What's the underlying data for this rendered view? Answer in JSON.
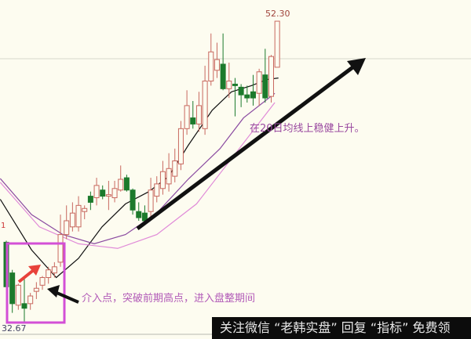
{
  "chart_data": {
    "type": "candlestick",
    "title": "",
    "xlabel": "",
    "ylabel": "",
    "ylim": [
      32.67,
      52.3
    ],
    "grid": false,
    "high_label": "52.30",
    "low_label": "32.67",
    "left_marker": "1",
    "candle_fields": [
      "open",
      "high",
      "low",
      "close"
    ],
    "candles": [
      [
        37.9,
        38.0,
        34.6,
        35.0
      ],
      [
        35.9,
        36.1,
        33.3,
        33.9
      ],
      [
        33.8,
        35.2,
        33.5,
        35.1
      ],
      [
        33.9,
        35.6,
        32.67,
        33.6
      ],
      [
        33.9,
        34.6,
        33.5,
        34.4
      ],
      [
        34.7,
        35.3,
        34.2,
        34.9
      ],
      [
        35.1,
        35.7,
        34.8,
        35.6
      ],
      [
        35.6,
        36.3,
        35.2,
        36.1
      ],
      [
        35.9,
        36.6,
        35.6,
        36.3
      ],
      [
        36.6,
        39.7,
        36.3,
        38.4
      ],
      [
        38.4,
        40.3,
        38.1,
        39.3
      ],
      [
        38.9,
        40.5,
        38.6,
        39.8
      ],
      [
        38.9,
        40.9,
        38.6,
        40.3
      ],
      [
        39.9,
        40.3,
        39.4,
        40.1
      ],
      [
        40.9,
        41.2,
        40.0,
        40.5
      ],
      [
        40.8,
        42.1,
        40.3,
        41.6
      ],
      [
        41.3,
        41.6,
        40.7,
        40.9
      ],
      [
        40.9,
        41.9,
        40.0,
        41.0
      ],
      [
        40.8,
        41.9,
        40.5,
        41.4
      ],
      [
        41.3,
        42.9,
        41.2,
        42.0
      ],
      [
        42.1,
        42.3,
        41.2,
        41.3
      ],
      [
        41.3,
        41.4,
        39.7,
        40.0
      ],
      [
        39.9,
        40.5,
        39.3,
        39.5
      ],
      [
        39.8,
        40.3,
        39.2,
        39.3
      ],
      [
        39.9,
        42.1,
        39.4,
        41.3
      ],
      [
        40.9,
        42.2,
        40.5,
        41.7
      ],
      [
        41.4,
        43.2,
        41.0,
        42.5
      ],
      [
        41.7,
        43.7,
        41.2,
        42.7
      ],
      [
        42.2,
        44.0,
        41.8,
        43.2
      ],
      [
        43.0,
        45.8,
        42.6,
        45.3
      ],
      [
        45.3,
        47.8,
        44.9,
        46.8
      ],
      [
        46.0,
        47.1,
        45.3,
        45.6
      ],
      [
        45.6,
        47.7,
        45.1,
        46.8
      ],
      [
        45.3,
        49.4,
        44.9,
        48.4
      ],
      [
        48.4,
        51.5,
        48.1,
        50.3
      ],
      [
        49.1,
        50.9,
        48.6,
        49.8
      ],
      [
        49.5,
        51.5,
        47.8,
        47.9
      ],
      [
        47.9,
        49.6,
        47.3,
        48.4
      ],
      [
        48.2,
        48.6,
        46.1,
        48.1
      ],
      [
        48.0,
        48.2,
        46.7,
        47.5
      ],
      [
        47.5,
        48.1,
        47.0,
        47.3
      ],
      [
        47.7,
        48.8,
        46.8,
        47.3
      ],
      [
        47.6,
        49.2,
        46.8,
        49.0
      ],
      [
        48.8,
        50.5,
        47.0,
        47.3
      ],
      [
        47.4,
        50.1,
        47.0,
        50.0
      ],
      [
        49.3,
        52.3,
        49.3,
        52.3
      ]
    ],
    "moving_averages": [
      {
        "color": "#111111",
        "points": [
          [
            -1,
            40.7
          ],
          [
            4.2,
            37.4
          ],
          [
            8.3,
            35.6
          ],
          [
            12,
            36.85
          ],
          [
            15.9,
            38.9
          ],
          [
            19.8,
            40.4
          ],
          [
            23.7,
            41.2
          ],
          [
            27,
            42.2
          ],
          [
            30.2,
            44.2
          ],
          [
            34.2,
            46.5
          ],
          [
            37.4,
            47.7
          ],
          [
            40.7,
            48.1
          ],
          [
            43.3,
            48.5
          ],
          [
            45.2,
            48.6
          ]
        ]
      },
      {
        "color": "#8a4aa0",
        "points": [
          [
            -1,
            42.05
          ],
          [
            4.2,
            39.7
          ],
          [
            9.4,
            38.4
          ],
          [
            14.6,
            37.8
          ],
          [
            19.8,
            38.4
          ],
          [
            25,
            39.8
          ],
          [
            30.2,
            42.0
          ],
          [
            35.5,
            44.0
          ],
          [
            39.4,
            46.0
          ],
          [
            44.6,
            47.6
          ]
        ]
      },
      {
        "color": "#e08ad8",
        "points": [
          [
            -1,
            41.8
          ],
          [
            5.5,
            38.9
          ],
          [
            12,
            37.8
          ],
          [
            18.5,
            37.5
          ],
          [
            25,
            38.4
          ],
          [
            31.6,
            40.4
          ],
          [
            38.1,
            43.7
          ],
          [
            44.6,
            47.0
          ]
        ]
      }
    ],
    "colors": {
      "up": "#c8685f",
      "down": "#1c7a2c",
      "box": "#d34fd6",
      "note": "#b25bb8",
      "arrow_red": "#e8423a"
    },
    "annotations": {
      "entry_note": "介入点，突破前期高点，进入盘整期间",
      "trend_note": "在20日均线上稳健上升。"
    }
  },
  "banner": {
    "text": "关注微信 “老韩实盘” 回复 “指标” 免费领"
  }
}
